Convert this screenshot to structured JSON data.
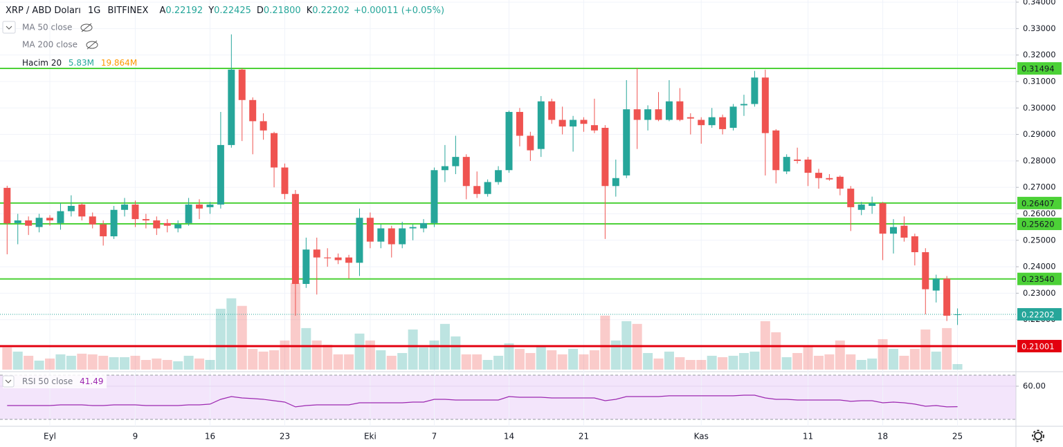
{
  "chart_data": {
    "type": "candlestick",
    "title": "XRP / ABD Doları",
    "interval": "1G",
    "exchange": "BITFINEX",
    "ohlc_header": [
      {
        "key": "A",
        "value": 0.22192
      },
      {
        "key": "Y",
        "value": 0.22425
      },
      {
        "key": "D",
        "value": {
          "value": 0.218,
          "label": "0.21800"
        }
      },
      {
        "key": "K",
        "value": 0.22202
      }
    ],
    "change": "+0.00011 (+0.05%)",
    "indicators": [
      "MA 50 close",
      "MA 200 close",
      "Hacim 20"
    ],
    "volume_label": {
      "value": 5.83,
      "label": "5.83M"
    },
    "volume_ma_label": {
      "value": 19.864,
      "label": "19.864M"
    },
    "up_color": "#26a69a",
    "down_color": "#ef5350",
    "categories": [
      null,
      null,
      null,
      null,
      "Eyl",
      null,
      null,
      null,
      null,
      null,
      null,
      null,
      "9",
      null,
      null,
      null,
      null,
      null,
      null,
      "16",
      null,
      null,
      null,
      null,
      null,
      null,
      "23",
      null,
      null,
      null,
      null,
      null,
      null,
      null,
      "Eki",
      null,
      null,
      null,
      null,
      null,
      "7",
      null,
      null,
      null,
      null,
      null,
      null,
      "14",
      null,
      null,
      null,
      null,
      null,
      null,
      "21",
      null,
      null,
      null,
      null,
      null,
      null,
      null,
      null,
      null,
      null,
      "Kas",
      null,
      null,
      null,
      null,
      null,
      null,
      null,
      null,
      null,
      "11",
      null,
      null,
      null,
      null,
      null,
      null,
      "18",
      null,
      null,
      null,
      null,
      null,
      null,
      "25"
    ],
    "open": [
      0.2698,
      0.2565,
      0.2575,
      0.255,
      0.2585,
      0.2565,
      0.261,
      0.2635,
      0.259,
      0.256,
      0.2515,
      0.2615,
      0.2635,
      0.258,
      0.2575,
      0.2565,
      0.2545,
      0.2565,
      0.2635,
      0.2625,
      0.2635,
      0.286,
      0.3145,
      0.303,
      0.295,
      0.2905,
      0.2775,
      0.2675,
      0.2335,
      0.2465,
      0.2435,
      0.2435,
      0.2435,
      0.2415,
      0.2585,
      0.2495,
      0.2545,
      0.2485,
      0.2545,
      0.2545,
      0.2565,
      0.2765,
      0.278,
      0.2815,
      0.2705,
      0.2675,
      0.272,
      0.2765,
      0.2985,
      0.2895,
      0.2845,
      0.3025,
      0.2955,
      0.293,
      0.2955,
      0.2935,
      0.2925,
      0.2705,
      0.2745,
      0.2995,
      0.2955,
      0.2995,
      0.2955,
      0.3025,
      0.2965,
      0.2955,
      0.2935,
      0.2965,
      0.2925,
      0.301,
      0.3015,
      0.3115,
      0.2915,
      0.276,
      0.2805,
      0.2805,
      0.2755,
      0.2735,
      0.274,
      0.2695,
      0.2615,
      0.263,
      0.264,
      0.2525,
      0.2555,
      0.2515,
      0.2455,
      0.231,
      0.2355,
      0.22192
    ],
    "high": [
      0.2706,
      0.26,
      0.259,
      0.26,
      0.2595,
      0.264,
      0.267,
      0.264,
      0.2605,
      0.2575,
      0.263,
      0.266,
      0.265,
      0.26,
      0.259,
      0.258,
      0.2575,
      0.266,
      0.2655,
      0.2645,
      0.2985,
      0.3278,
      0.315,
      0.304,
      0.298,
      0.291,
      0.279,
      0.269,
      0.251,
      0.251,
      0.247,
      0.245,
      0.2445,
      0.262,
      0.2605,
      0.256,
      0.2555,
      0.257,
      0.256,
      0.258,
      0.2775,
      0.286,
      0.2895,
      0.2825,
      0.276,
      0.273,
      0.278,
      0.299,
      0.3,
      0.291,
      0.3045,
      0.3035,
      0.3005,
      0.297,
      0.2965,
      0.3035,
      0.2935,
      0.2805,
      0.3105,
      0.315,
      0.301,
      0.306,
      0.3105,
      0.3075,
      0.298,
      0.2965,
      0.3,
      0.2975,
      0.3015,
      0.305,
      0.314,
      0.3145,
      0.292,
      0.2825,
      0.285,
      0.2815,
      0.277,
      0.275,
      0.2745,
      0.2705,
      0.2645,
      0.2665,
      0.2645,
      0.258,
      0.259,
      0.2525,
      0.247,
      0.237,
      0.2365,
      0.22425
    ],
    "low": [
      0.2447,
      0.2485,
      0.252,
      0.253,
      0.2555,
      0.254,
      0.259,
      0.2575,
      0.2545,
      0.248,
      0.2505,
      0.259,
      0.255,
      0.2545,
      0.252,
      0.253,
      0.253,
      0.2555,
      0.258,
      0.26,
      0.262,
      0.285,
      0.2875,
      0.2825,
      0.288,
      0.27,
      0.2655,
      0.2215,
      0.232,
      0.2295,
      0.24,
      0.241,
      0.2355,
      0.2365,
      0.247,
      0.247,
      0.2435,
      0.247,
      0.25,
      0.253,
      0.255,
      0.272,
      0.275,
      0.2655,
      0.266,
      0.2665,
      0.271,
      0.2755,
      0.2855,
      0.28,
      0.2815,
      0.294,
      0.29,
      0.2835,
      0.291,
      0.2905,
      0.2505,
      0.2665,
      0.2735,
      0.2845,
      0.2915,
      0.295,
      0.295,
      0.295,
      0.29,
      0.2865,
      0.2925,
      0.29,
      0.2915,
      0.297,
      0.3005,
      0.2745,
      0.2715,
      0.275,
      0.279,
      0.2705,
      0.2695,
      0.2725,
      0.267,
      0.2535,
      0.2595,
      0.26,
      0.2425,
      0.245,
      0.2495,
      0.2405,
      0.222,
      0.2265,
      0.2195,
      0.218
    ],
    "close": [
      0.2564,
      0.2575,
      0.2555,
      0.2585,
      0.2575,
      0.261,
      0.263,
      0.259,
      0.256,
      0.2515,
      0.2615,
      0.2635,
      0.258,
      0.2575,
      0.2545,
      0.2555,
      0.256,
      0.2635,
      0.262,
      0.2635,
      0.286,
      0.3145,
      0.303,
      0.295,
      0.2915,
      0.2775,
      0.2675,
      0.2335,
      0.2465,
      0.2435,
      0.2432,
      0.2425,
      0.2415,
      0.2585,
      0.2495,
      0.2545,
      0.2485,
      0.2545,
      0.255,
      0.2565,
      0.2765,
      0.278,
      0.2815,
      0.2705,
      0.2675,
      0.272,
      0.2765,
      0.2985,
      0.2895,
      0.284,
      0.3025,
      0.2955,
      0.293,
      0.2955,
      0.294,
      0.2915,
      0.2705,
      0.2735,
      0.2995,
      0.2955,
      0.2995,
      0.2955,
      0.3025,
      0.2955,
      0.296,
      0.2935,
      0.2965,
      0.292,
      0.3005,
      0.3015,
      0.3115,
      0.2905,
      0.2765,
      0.2815,
      0.28,
      0.2755,
      0.2735,
      0.273,
      0.2695,
      0.2625,
      0.2635,
      0.264,
      0.2525,
      0.255,
      0.251,
      0.2455,
      0.2315,
      0.2355,
      0.2215,
      0.22202
    ],
    "volume": [
      23.4,
      19,
      14.6,
      9.5,
      11.7,
      16.1,
      14.6,
      16.8,
      16.1,
      14.6,
      13.1,
      13.1,
      14.6,
      10.2,
      11.7,
      10.2,
      8.8,
      14.6,
      11.7,
      10.2,
      64.2,
      75.2,
      67.2,
      21.9,
      19,
      20.4,
      30.7,
      91.3,
      43.8,
      30.7,
      26.3,
      16.1,
      16.1,
      38,
      30.7,
      20.4,
      14.6,
      17.5,
      42.3,
      23.4,
      30.7,
      48.2,
      35,
      16.1,
      16.1,
      10.2,
      14.6,
      27.7,
      21.9,
      17.5,
      24.8,
      20.4,
      16.1,
      21.9,
      16.1,
      20.4,
      56.9,
      30.7,
      51.1,
      48.2,
      17.5,
      11.7,
      19,
      13.1,
      10.2,
      10.2,
      14.6,
      13.1,
      14.6,
      17.5,
      19,
      51.1,
      39.4,
      13.1,
      17.5,
      24.8,
      14.6,
      16.1,
      30.7,
      16.1,
      10.2,
      11.7,
      32.1,
      21.9,
      14.6,
      21.9,
      42.3,
      19,
      43.8,
      5.83
    ],
    "volume_lim": [
      0,
      102
    ],
    "ylim": [
      0.2006,
      0.3408
    ],
    "yticks": [
      {
        "value": 0.34,
        "label": "0.34000"
      },
      {
        "value": 0.33,
        "label": "0.33000"
      },
      {
        "value": 0.32,
        "label": "0.32000"
      },
      {
        "value": 0.31,
        "label": "0.31000"
      },
      {
        "value": 0.3,
        "label": "0.30000"
      },
      {
        "value": 0.29,
        "label": "0.29000"
      },
      {
        "value": 0.28,
        "label": "0.28000"
      },
      {
        "value": 0.27,
        "label": "0.27000"
      },
      {
        "value": 0.26,
        "label": "0.26000"
      },
      {
        "value": 0.25,
        "label": "0.25000"
      },
      {
        "value": 0.24,
        "label": "0.24000"
      },
      {
        "value": 0.23,
        "label": "0.23000"
      },
      {
        "value": 0.22,
        "label": "0.22000"
      }
    ],
    "levels": [
      {
        "value": 0.31494,
        "color": "#4cd137"
      },
      {
        "value": 0.26407,
        "color": "#4cd137"
      },
      {
        "value": {
          "value": 0.2562,
          "label": "0.25620"
        },
        "color": "#4cd137"
      },
      {
        "value": {
          "value": 0.2354,
          "label": "0.23540"
        },
        "color": "#4cd137"
      },
      {
        "value": 0.21001,
        "color": "#e3000f"
      }
    ],
    "last_price": 0.22202,
    "rsi_title": "RSI 50 close",
    "rsi_label": 41.49,
    "rsi_ylim": [
      30,
      70
    ],
    "rsi_yticks": [
      {
        "value": 60,
        "label": "60.00"
      }
    ],
    "rsi": [
      42.5,
      42.5,
      42.5,
      42.5,
      42.5,
      43.1,
      43.1,
      43.1,
      42.5,
      42.5,
      43.1,
      43.1,
      43.1,
      42.5,
      42.5,
      42.5,
      42.5,
      43.1,
      43.1,
      43.8,
      48.1,
      50.6,
      49.4,
      48.8,
      48.1,
      46.9,
      45.6,
      41.3,
      42.5,
      43.1,
      43.1,
      43.1,
      43.1,
      45,
      45,
      45,
      45,
      45,
      45.6,
      45.6,
      48.1,
      48.1,
      47.5,
      47.5,
      47.5,
      47.5,
      47.5,
      50.6,
      50,
      50,
      50,
      49.4,
      49.4,
      49.4,
      49.4,
      49.4,
      46.9,
      48.1,
      50.6,
      50.6,
      50.6,
      50.6,
      51.3,
      51.3,
      51.3,
      51.3,
      51.3,
      51.3,
      51.3,
      51.9,
      51.9,
      49.4,
      48.1,
      48.1,
      47.5,
      47.5,
      47.5,
      47.5,
      47.5,
      46.3,
      46.9,
      46.9,
      45,
      45.6,
      45,
      43.8,
      41.9,
      42.5,
      41.3,
      41.49
    ],
    "rsi_color": "#9c27b0"
  }
}
